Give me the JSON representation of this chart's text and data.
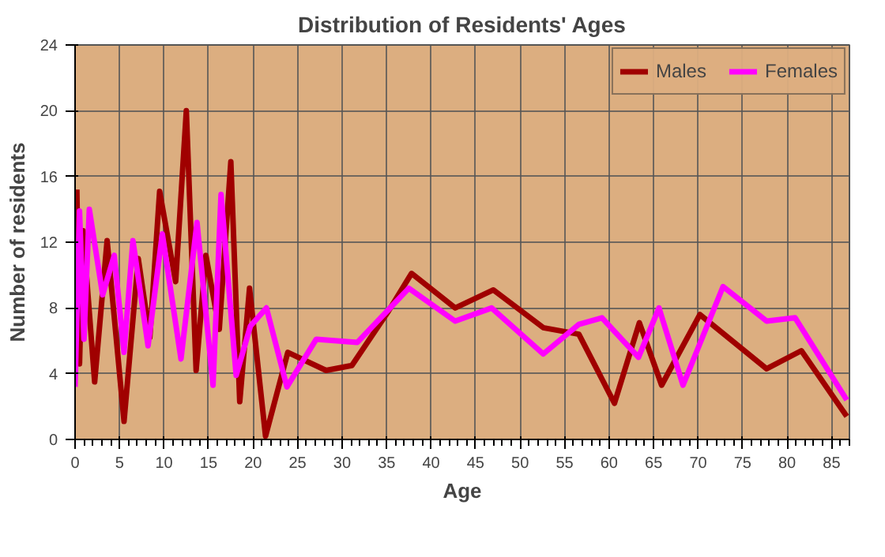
{
  "chart_data": {
    "type": "line",
    "title": "Distribution of Residents' Ages",
    "xlabel": "Age",
    "ylabel": "Number of residents",
    "xlim": [
      0,
      87
    ],
    "xticks": [
      0,
      5,
      10,
      15,
      20,
      25,
      30,
      35,
      40,
      45,
      50,
      55,
      60,
      65,
      70,
      75,
      80,
      85
    ],
    "ylim": [
      0,
      24
    ],
    "yticks": [
      0,
      4,
      8,
      12,
      16,
      20,
      24
    ],
    "grid": true,
    "legend": "top right",
    "line_style": "solid",
    "marker": "none",
    "series": [
      {
        "name": "Males",
        "color": "#a00000",
        "x": [
          0.2,
          0.5,
          0.9,
          2.2,
          3.6,
          5.5,
          7.1,
          8.4,
          9.5,
          11.3,
          12.5,
          13.6,
          14.7,
          16.2,
          17.5,
          18.5,
          19.6,
          21.4,
          23.9,
          28.2,
          31.1,
          35.2,
          37.8,
          42.7,
          47.0,
          52.6,
          56.6,
          60.6,
          63.4,
          65.9,
          70.2,
          77.7,
          81.6,
          86.7
        ],
        "values": [
          15.2,
          4.6,
          12.7,
          3.5,
          12.1,
          1.1,
          11.0,
          6.2,
          15.1,
          9.6,
          20.0,
          4.2,
          11.2,
          6.7,
          16.9,
          2.3,
          9.2,
          0.2,
          5.3,
          4.2,
          4.5,
          7.8,
          10.1,
          8.0,
          9.1,
          6.8,
          6.4,
          2.2,
          7.1,
          3.3,
          7.6,
          4.3,
          5.4,
          1.4
        ]
      },
      {
        "name": "Females",
        "color": "#ff00ff",
        "x": [
          0.0,
          0.5,
          1.0,
          1.6,
          3.1,
          4.4,
          5.5,
          6.5,
          8.2,
          9.8,
          11.9,
          13.7,
          15.5,
          16.4,
          18.1,
          19.7,
          21.5,
          23.8,
          27.1,
          31.7,
          37.5,
          42.7,
          46.8,
          52.6,
          56.6,
          59.2,
          63.3,
          65.6,
          68.3,
          72.8,
          77.7,
          80.9,
          86.7
        ],
        "values": [
          3.2,
          13.9,
          6.1,
          14.0,
          8.8,
          11.2,
          5.3,
          12.1,
          5.7,
          12.5,
          4.9,
          13.2,
          3.3,
          14.9,
          3.9,
          6.9,
          8.0,
          3.2,
          6.1,
          5.9,
          9.2,
          7.2,
          8.0,
          5.2,
          7.0,
          7.4,
          5.0,
          8.0,
          3.3,
          9.3,
          7.2,
          7.4,
          2.4
        ]
      }
    ]
  }
}
